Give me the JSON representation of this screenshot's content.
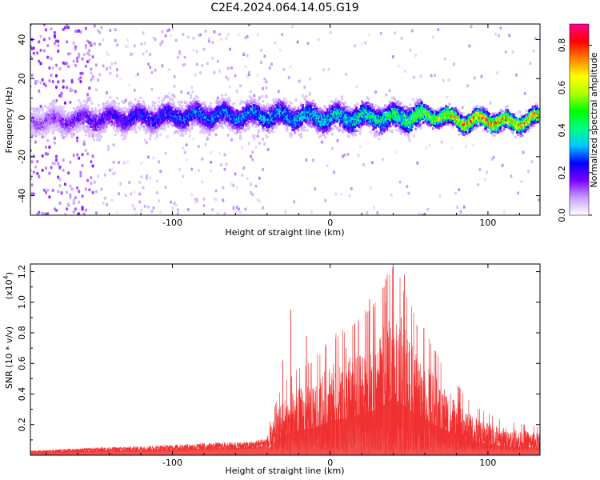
{
  "title": "C2E4.2024.064.14.05.G19",
  "chart_data": [
    {
      "type": "heatmap",
      "xlabel": "Height of straight line (km)",
      "ylabel": "Frequency (Hz)",
      "xlim": [
        -190,
        133
      ],
      "ylim": [
        -50,
        48
      ],
      "x_ticks": [
        "-100",
        "0",
        "100"
      ],
      "x_tick_values": [
        -100,
        0,
        100
      ],
      "y_ticks": [
        "40",
        "20",
        "0",
        "-20",
        "-40"
      ],
      "y_tick_values": [
        40,
        20,
        0,
        -20,
        -40
      ],
      "ridge": [
        {
          "x": -190,
          "y": -2,
          "amp": 0.12
        },
        {
          "x": -160,
          "y": -1,
          "amp": 0.18
        },
        {
          "x": -120,
          "y": 0,
          "amp": 0.25
        },
        {
          "x": -80,
          "y": 1,
          "amp": 0.3
        },
        {
          "x": -40,
          "y": 1,
          "amp": 0.33
        },
        {
          "x": 0,
          "y": 0,
          "amp": 0.38
        },
        {
          "x": 40,
          "y": 0,
          "amp": 0.45
        },
        {
          "x": 70,
          "y": 1,
          "amp": 0.6
        },
        {
          "x": 85,
          "y": -2,
          "amp": 0.75
        },
        {
          "x": 100,
          "y": -1,
          "amp": 0.8
        },
        {
          "x": 115,
          "y": -3,
          "amp": 0.7
        },
        {
          "x": 133,
          "y": 0,
          "amp": 0.7
        }
      ],
      "colorbar": {
        "label": "Normalized spectral amplitude",
        "ticks": [
          "0.0",
          "0.2",
          "0.4",
          "0.6",
          "0.8"
        ],
        "tick_values": [
          0,
          0.2,
          0.4,
          0.6,
          0.8
        ],
        "range": [
          0,
          0.9
        ],
        "colors": [
          "#ffffff",
          "#c8a0ff",
          "#7b00ff",
          "#0000ff",
          "#00c8ff",
          "#00ff80",
          "#00ff00",
          "#b0ff00",
          "#ffff00",
          "#ff8000",
          "#ff0000",
          "#ff0090"
        ]
      }
    },
    {
      "type": "area",
      "xlabel": "Height of straight line (km)",
      "ylabel": "SNR (10 * v/v)",
      "scale_label": "(x10",
      "scale_exp": "4",
      "scale_close": ")",
      "xlim": [
        -190,
        133
      ],
      "ylim": [
        0,
        1.25
      ],
      "x_ticks": [
        "-100",
        "0",
        "100"
      ],
      "x_tick_values": [
        -100,
        0,
        100
      ],
      "y_ticks": [
        "0.2",
        "0.4",
        "0.6",
        "0.8",
        "1.0",
        "1.2"
      ],
      "y_tick_values": [
        0.2,
        0.4,
        0.6,
        0.8,
        1.0,
        1.2
      ],
      "color": "#f03030",
      "envelope": {
        "x": [
          -190,
          -150,
          -120,
          -100,
          -80,
          -50,
          -40,
          -35,
          -30,
          -25,
          -20,
          -10,
          0,
          10,
          20,
          30,
          40,
          50,
          60,
          70,
          80,
          90,
          100,
          110,
          120,
          133
        ],
        "y": [
          0.03,
          0.05,
          0.06,
          0.07,
          0.08,
          0.09,
          0.12,
          0.3,
          0.45,
          0.5,
          0.55,
          0.6,
          0.75,
          0.8,
          0.9,
          1.0,
          1.25,
          1.0,
          0.8,
          0.6,
          0.45,
          0.3,
          0.25,
          0.2,
          0.18,
          0.16
        ]
      },
      "peaks": [
        {
          "x": -30,
          "y": 0.62
        },
        {
          "x": -25,
          "y": 0.95
        },
        {
          "x": -15,
          "y": 0.78
        },
        {
          "x": 10,
          "y": 0.7
        },
        {
          "x": 25,
          "y": 1.02
        },
        {
          "x": 35,
          "y": 1.0
        },
        {
          "x": 40,
          "y": 1.25
        },
        {
          "x": 45,
          "y": 0.9
        },
        {
          "x": 47,
          "y": 1.18
        },
        {
          "x": 55,
          "y": 0.85
        }
      ]
    }
  ]
}
